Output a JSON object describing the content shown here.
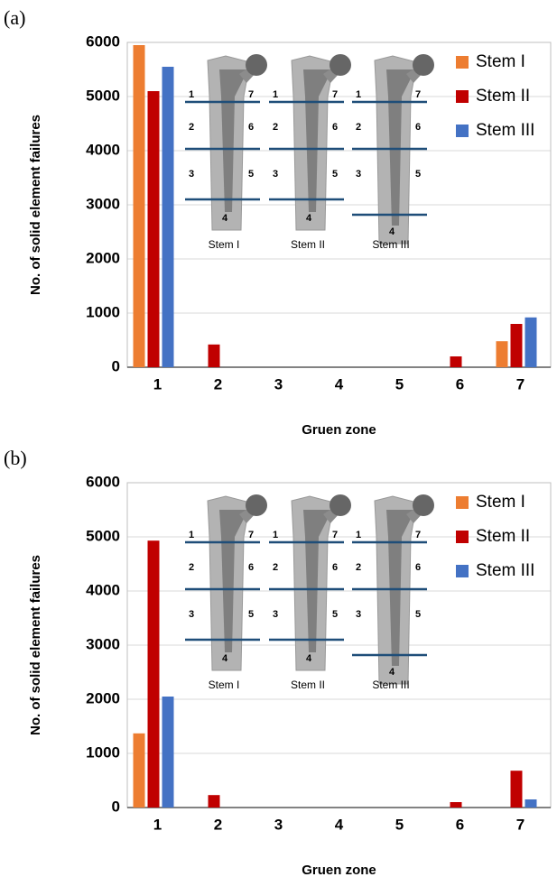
{
  "chart_data": [
    {
      "type": "bar",
      "panel": "(a)",
      "x_label": "Gruen zone",
      "y_label": "No. of solid element failures",
      "categories": [
        "1",
        "2",
        "3",
        "4",
        "5",
        "6",
        "7"
      ],
      "series": [
        {
          "name": "Stem I",
          "color": "#ed7d31",
          "values": [
            5950,
            0,
            0,
            0,
            0,
            0,
            480
          ]
        },
        {
          "name": "Stem II",
          "color": "#c00000",
          "values": [
            5100,
            420,
            0,
            0,
            0,
            200,
            800
          ]
        },
        {
          "name": "Stem III",
          "color": "#4472c4",
          "values": [
            5550,
            0,
            0,
            0,
            0,
            0,
            920
          ]
        }
      ],
      "ylim": [
        0,
        6000
      ],
      "yticks": [
        0,
        1000,
        2000,
        3000,
        4000,
        5000,
        6000
      ],
      "grid": true,
      "legend": "top-right"
    },
    {
      "type": "bar",
      "panel": "(b)",
      "x_label": "Gruen zone",
      "y_label": "No. of solid element failures",
      "categories": [
        "1",
        "2",
        "3",
        "4",
        "5",
        "6",
        "7"
      ],
      "series": [
        {
          "name": "Stem I",
          "color": "#ed7d31",
          "values": [
            1370,
            0,
            0,
            0,
            0,
            0,
            0
          ]
        },
        {
          "name": "Stem II",
          "color": "#c00000",
          "values": [
            4930,
            230,
            0,
            0,
            0,
            100,
            680
          ]
        },
        {
          "name": "Stem III",
          "color": "#4472c4",
          "values": [
            2050,
            0,
            0,
            0,
            0,
            0,
            150
          ]
        }
      ],
      "ylim": [
        0,
        6000
      ],
      "yticks": [
        0,
        1000,
        2000,
        3000,
        4000,
        5000,
        6000
      ],
      "grid": true,
      "legend": "top-right"
    }
  ]
}
